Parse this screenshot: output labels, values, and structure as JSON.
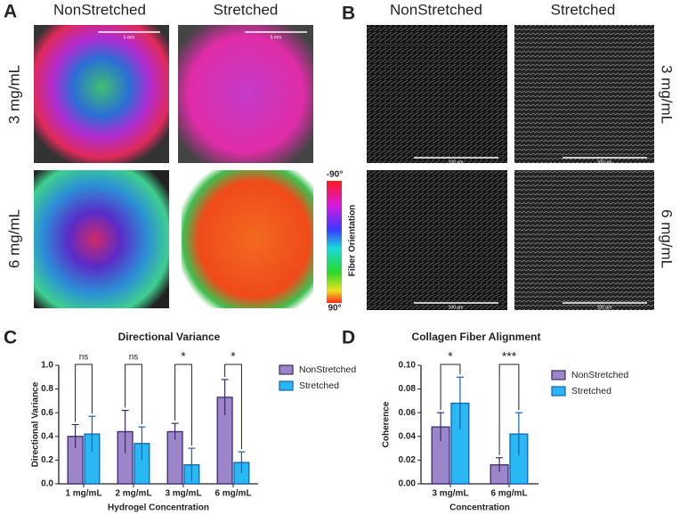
{
  "panels": {
    "a": {
      "label": "A",
      "columns": [
        "NonStretched",
        "Stretched"
      ],
      "rows": [
        "3 mg/mL",
        "6 mg/mL"
      ],
      "scale": "5 mm",
      "colorbar": {
        "title": "Fiber Orientation",
        "top": "-90°",
        "bottom": "90°"
      }
    },
    "b": {
      "label": "B",
      "columns": [
        "NonStretched",
        "Stretched"
      ],
      "rows": [
        "3 mg/mL",
        "6 mg/mL"
      ],
      "scale": "100 µm"
    },
    "c": {
      "label": "C"
    },
    "d": {
      "label": "D"
    }
  },
  "chart_data": [
    {
      "type": "bar",
      "title": "Directional Variance",
      "x_label": "Hydrogel Concentration",
      "y_label": "Directional Variance",
      "categories": [
        "1 mg/mL",
        "2 mg/mL",
        "3 mg/mL",
        "6 mg/mL"
      ],
      "series": [
        {
          "name": "NonStretched",
          "color": "#9d85c9",
          "edge": "#3d2a6b",
          "values": [
            0.4,
            0.44,
            0.44,
            0.73
          ],
          "errors": [
            0.1,
            0.18,
            0.07,
            0.15
          ]
        },
        {
          "name": "Stretched",
          "color": "#2ab8f5",
          "edge": "#1461b0",
          "values": [
            0.42,
            0.34,
            0.16,
            0.18
          ],
          "errors": [
            0.15,
            0.14,
            0.14,
            0.09
          ]
        }
      ],
      "significance": [
        "ns",
        "ns",
        "*",
        "*"
      ],
      "ylim": [
        0,
        1.0
      ],
      "yticks": [
        {
          "value": 0,
          "label": "0.0"
        },
        0.2,
        0.4,
        0.6,
        0.8,
        {
          "value": 1,
          "label": "1.0"
        }
      ]
    },
    {
      "type": "bar",
      "title": "Collagen Fiber Alignment",
      "x_label": "Concentration",
      "y_label": "Coherence",
      "categories": [
        "3 mg/mL",
        "6 mg/mL"
      ],
      "series": [
        {
          "name": "NonStretched",
          "color": "#9d85c9",
          "edge": "#3d2a6b",
          "values": [
            0.048,
            0.016
          ],
          "errors": [
            0.012,
            0.006
          ]
        },
        {
          "name": "Stretched",
          "color": "#2ab8f5",
          "edge": "#1461b0",
          "values": [
            0.068,
            0.042
          ],
          "errors": [
            0.022,
            0.018
          ]
        }
      ],
      "significance": [
        "*",
        "***"
      ],
      "ylim": [
        0,
        0.1
      ],
      "yticks": [
        {
          "value": 0,
          "label": "0.00"
        },
        0.02,
        0.04,
        0.06,
        0.08,
        {
          "value": 0.1,
          "label": "0.10"
        }
      ]
    }
  ]
}
